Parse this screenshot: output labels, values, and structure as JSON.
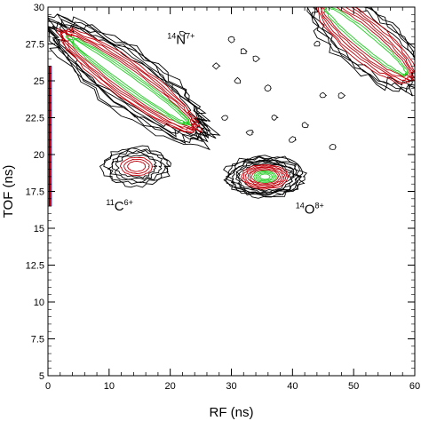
{
  "chart_data": {
    "type": "contour",
    "xlabel": "RF (ns)",
    "ylabel": "TOF (ns)",
    "xlim": [
      0,
      60
    ],
    "ylim": [
      5,
      30
    ],
    "xticks": [
      "0",
      "10",
      "20",
      "30",
      "40",
      "50",
      "60"
    ],
    "yticks": [
      "5",
      "7.5",
      "10",
      "12.5",
      "15",
      "17.5",
      "20",
      "22.5",
      "25",
      "27.5",
      "30"
    ],
    "xtick_values": [
      0,
      10,
      20,
      30,
      40,
      50,
      60
    ],
    "ytick_values": [
      5,
      7.5,
      10,
      12.5,
      15,
      17.5,
      20,
      22.5,
      25,
      27.5,
      30
    ],
    "annotations": [
      {
        "mass": "14",
        "element": "N",
        "charge": "7+",
        "x": 19.5,
        "y": 27.5
      },
      {
        "mass": "11",
        "element": "C",
        "charge": "6+",
        "x": 9.5,
        "y": 16.2
      },
      {
        "mass": "14",
        "element": "O",
        "charge": "8+",
        "x": 40.5,
        "y": 16.0
      }
    ],
    "regions": [
      {
        "ion": "14O8+",
        "center": [
          35.5,
          18.5
        ],
        "rx": 6.5,
        "ry": 1.4,
        "levels": {
          "black": 8,
          "red": 6,
          "green": 4
        }
      },
      {
        "ion": "11C6+",
        "center": [
          14.5,
          19.2
        ],
        "rx": 5.5,
        "ry": 1.3,
        "levels": {
          "black": 5,
          "red": 3,
          "green": 0
        }
      },
      {
        "ion": "14N7+",
        "band_from": [
          1.5,
          28.5
        ],
        "band_to": [
          25.0,
          21.5
        ],
        "levels": {
          "black": 6,
          "red": 5,
          "green": 3
        }
      },
      {
        "ion": "upper-right",
        "band_from": [
          44.0,
          30.5
        ],
        "band_to": [
          60.0,
          25.0
        ],
        "levels": {
          "black": 4,
          "red": 5,
          "green": 2
        }
      }
    ],
    "contour_colors": {
      "outer": "#000000",
      "middle": "#c0000a",
      "inner": "#22cc22",
      "core": "#2255ff"
    },
    "grid": false
  }
}
